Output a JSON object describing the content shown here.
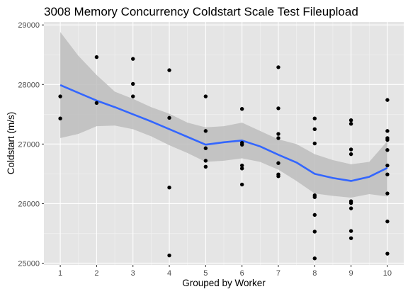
{
  "chart_data": {
    "type": "scatter",
    "title": "3008 Memory Concurrency Coldstart Scale Test Fileupload",
    "xlabel": "Grouped by Worker",
    "ylabel": "Coldstart (m/s)",
    "xlim": [
      0.55,
      10.45
    ],
    "ylim": [
      24970,
      29050
    ],
    "x_ticks": [
      1,
      2,
      3,
      4,
      5,
      6,
      7,
      8,
      9,
      10
    ],
    "x_tick_labels": [
      "1",
      "2",
      "3",
      "4",
      "5",
      "6",
      "7",
      "8",
      "9",
      "10"
    ],
    "y_ticks": [
      25000,
      26000,
      27000,
      28000,
      29000
    ],
    "y_tick_labels": [
      "25000",
      "26000",
      "27000",
      "28000",
      "29000"
    ],
    "grid": true,
    "background_color": "#e5e5e5",
    "point_color": "#000000",
    "smooth_color": "#3366ff",
    "band_color": "#bdbdbd",
    "points": [
      {
        "x": 1,
        "y": 27800
      },
      {
        "x": 1,
        "y": 27430
      },
      {
        "x": 2,
        "y": 28460
      },
      {
        "x": 2,
        "y": 27690
      },
      {
        "x": 3,
        "y": 28430
      },
      {
        "x": 3,
        "y": 28010
      },
      {
        "x": 3,
        "y": 27800
      },
      {
        "x": 4,
        "y": 28240
      },
      {
        "x": 4,
        "y": 27440
      },
      {
        "x": 4,
        "y": 26270
      },
      {
        "x": 4,
        "y": 25130
      },
      {
        "x": 5,
        "y": 27800
      },
      {
        "x": 5,
        "y": 27220
      },
      {
        "x": 5,
        "y": 26930
      },
      {
        "x": 5,
        "y": 26720
      },
      {
        "x": 5,
        "y": 26620
      },
      {
        "x": 6,
        "y": 27590
      },
      {
        "x": 6,
        "y": 27020
      },
      {
        "x": 6,
        "y": 26990
      },
      {
        "x": 6,
        "y": 26640
      },
      {
        "x": 6,
        "y": 26590
      },
      {
        "x": 6,
        "y": 26320
      },
      {
        "x": 7,
        "y": 28290
      },
      {
        "x": 7,
        "y": 27600
      },
      {
        "x": 7,
        "y": 27170
      },
      {
        "x": 7,
        "y": 27100
      },
      {
        "x": 7,
        "y": 26680
      },
      {
        "x": 7,
        "y": 26490
      },
      {
        "x": 7,
        "y": 26460
      },
      {
        "x": 8,
        "y": 27430
      },
      {
        "x": 8,
        "y": 27250
      },
      {
        "x": 8,
        "y": 27010
      },
      {
        "x": 8,
        "y": 26140
      },
      {
        "x": 8,
        "y": 26110
      },
      {
        "x": 8,
        "y": 25810
      },
      {
        "x": 8,
        "y": 25530
      },
      {
        "x": 8,
        "y": 25080
      },
      {
        "x": 9,
        "y": 27400
      },
      {
        "x": 9,
        "y": 27340
      },
      {
        "x": 9,
        "y": 26910
      },
      {
        "x": 9,
        "y": 26830
      },
      {
        "x": 9,
        "y": 26040
      },
      {
        "x": 9,
        "y": 26010
      },
      {
        "x": 9,
        "y": 25920
      },
      {
        "x": 9,
        "y": 25540
      },
      {
        "x": 9,
        "y": 25420
      },
      {
        "x": 10,
        "y": 27740
      },
      {
        "x": 10,
        "y": 27220
      },
      {
        "x": 10,
        "y": 27100
      },
      {
        "x": 10,
        "y": 27070
      },
      {
        "x": 10,
        "y": 26900
      },
      {
        "x": 10,
        "y": 26640
      },
      {
        "x": 10,
        "y": 26490
      },
      {
        "x": 10,
        "y": 26170
      },
      {
        "x": 10,
        "y": 25700
      },
      {
        "x": 10,
        "y": 25160
      }
    ],
    "smooth": {
      "x": [
        1,
        1.5,
        2,
        2.5,
        3,
        3.5,
        4,
        4.5,
        5,
        5.5,
        6,
        6.5,
        7,
        7.5,
        8,
        8.5,
        9,
        9.5,
        10
      ],
      "y": [
        27990,
        27860,
        27730,
        27620,
        27500,
        27380,
        27250,
        27120,
        26990,
        27030,
        27060,
        26960,
        26820,
        26690,
        26500,
        26430,
        26380,
        26450,
        26600
      ],
      "ymin": [
        27100,
        27170,
        27300,
        27310,
        27250,
        27130,
        26980,
        26850,
        26700,
        26720,
        26760,
        26700,
        26570,
        26380,
        26170,
        26130,
        26100,
        26160,
        26120
      ],
      "ymax": [
        28880,
        28480,
        28160,
        27880,
        27760,
        27620,
        27510,
        27360,
        27280,
        27300,
        27360,
        27220,
        27080,
        27000,
        26830,
        26730,
        26660,
        26700,
        27050
      ]
    }
  }
}
